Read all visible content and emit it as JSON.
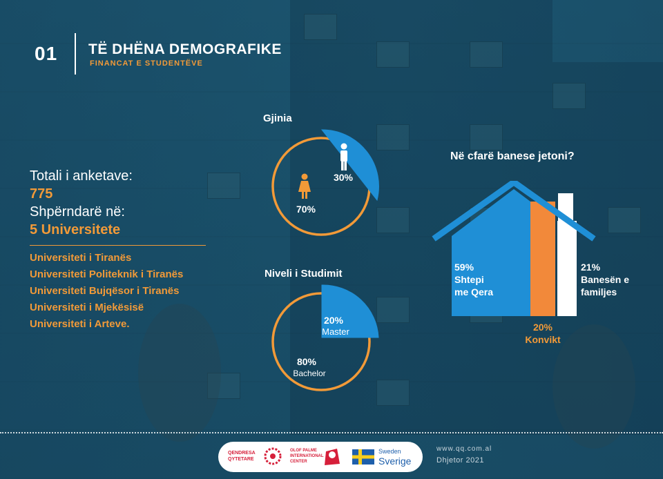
{
  "header": {
    "number": "01",
    "title": "TË DHËNA DEMOGRAFIKE",
    "subtitle": "FINANCAT E STUDENTËVE"
  },
  "summary": {
    "total_label": "Totali i anketave:",
    "total_value": "775",
    "spread_label": "Shpërndarë në:",
    "spread_value": "5 Universitete",
    "universities": [
      "Universiteti i Tiranës",
      "Universiteti Politeknik i Tiranës",
      "Universiteti Bujqësor i Tiranës",
      "Universiteti i Mjekësisë",
      "Universiteti i Arteve."
    ]
  },
  "gender_chart": {
    "title": "Gjinia",
    "male_label": "30%",
    "female_label": "70%"
  },
  "study_chart": {
    "title": "Niveli i Studimit",
    "master_pct": "20%",
    "master_label": "Master",
    "bachelor_pct": "80%",
    "bachelor_label": "Bachelor"
  },
  "housing": {
    "title": "Në cfarë banese jetoni?",
    "rent_pct": "59%",
    "rent_line1": "Shtepi",
    "rent_line2": "me Qera",
    "dorm_pct": "20%",
    "dorm_label": "Konvikt",
    "family_pct": "21%",
    "family_line1": "Banesën e",
    "family_line2": "familjes"
  },
  "chart_data": [
    {
      "type": "pie",
      "title": "Gjinia",
      "categories": [
        "Male",
        "Female"
      ],
      "values": [
        30,
        70
      ],
      "colors": [
        "#1f8fd6",
        "#f29a38"
      ]
    },
    {
      "type": "pie",
      "title": "Niveli i Studimit",
      "categories": [
        "Master",
        "Bachelor"
      ],
      "values": [
        20,
        80
      ],
      "colors": [
        "#1f8fd6",
        "#f29a38"
      ]
    },
    {
      "type": "bar",
      "title": "Në cfarë banese jetoni?",
      "categories": [
        "Shtepi me Qera",
        "Konvikt",
        "Banesën e familjes"
      ],
      "values": [
        59,
        20,
        21
      ],
      "colors": [
        "#1f8fd6",
        "#f2893a",
        "#ffffff"
      ]
    }
  ],
  "footer": {
    "logo1_line1": "QENDRESA",
    "logo1_line2": "QYTETARE",
    "logo2_line1": "OLOF PALME",
    "logo2_line2": "INTERNATIONAL",
    "logo2_line3": "CENTER",
    "logo3_line1": "Sweden",
    "logo3_line2": "Sverige",
    "url": "www.qq.com.al",
    "date": "Dhjetor 2021"
  },
  "colors": {
    "orange": "#f29a38",
    "blue": "#1f8fd6",
    "bg": "#1c5570"
  }
}
